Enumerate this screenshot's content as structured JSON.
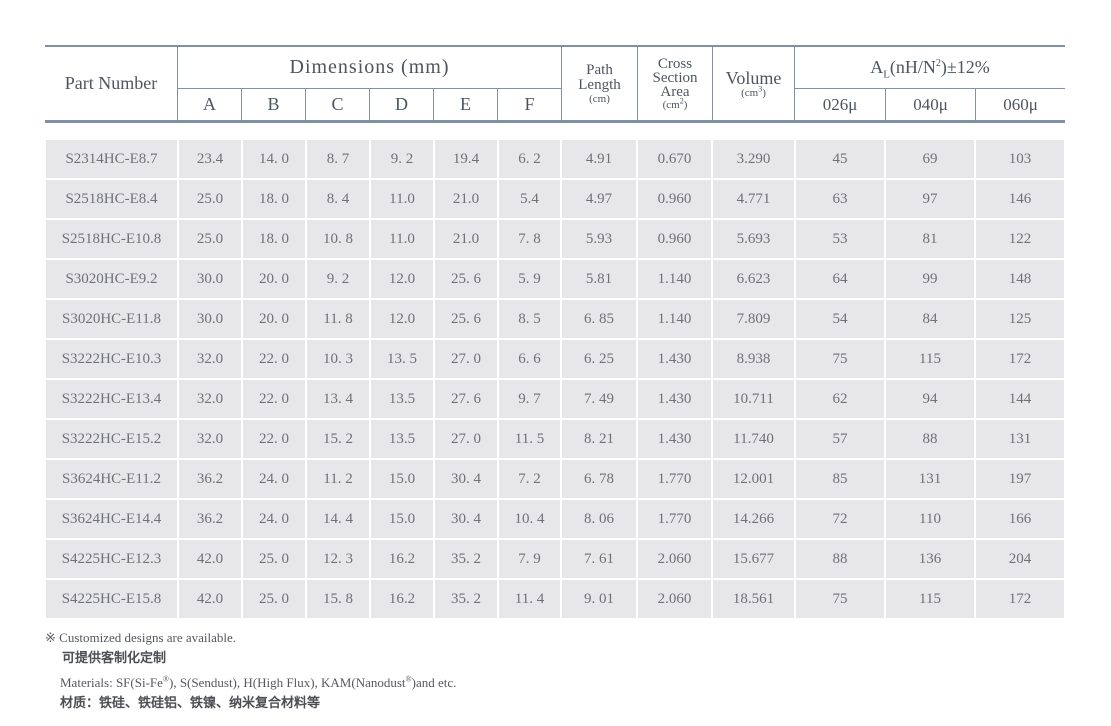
{
  "table": {
    "header": {
      "part_number": "Part Number",
      "dimensions": "Dimensions (mm)",
      "dim_cols": [
        "A",
        "B",
        "C",
        "D",
        "E",
        "F"
      ],
      "path_length": {
        "line1": "Path",
        "line2": "Length",
        "unit": "(cm)"
      },
      "cross_section": {
        "line1": "Cross",
        "line2": "Section",
        "line3": "Area",
        "unit_base": "(cm",
        "unit_sup": "2",
        "unit_tail": ")"
      },
      "volume": {
        "label": "Volume",
        "unit_base": "(cm",
        "unit_sup": "3",
        "unit_tail": ")"
      },
      "al": {
        "base": "A",
        "sub": "L",
        "mid": "(nH/N",
        "sup": "2",
        "tail": ")±12%"
      },
      "mu_cols": [
        "026μ",
        "040μ",
        "060μ"
      ]
    },
    "rows": [
      [
        "S2314HC-E8.7",
        "23.4",
        "14. 0",
        "8. 7",
        "9. 2",
        "19.4",
        "6. 2",
        "4.91",
        "0.670",
        "3.290",
        "45",
        "69",
        "103"
      ],
      [
        "S2518HC-E8.4",
        "25.0",
        "18. 0",
        "8. 4",
        "11.0",
        "21.0",
        "5.4",
        "4.97",
        "0.960",
        "4.771",
        "63",
        "97",
        "146"
      ],
      [
        "S2518HC-E10.8",
        "25.0",
        "18. 0",
        "10. 8",
        "11.0",
        "21.0",
        "7. 8",
        "5.93",
        "0.960",
        "5.693",
        "53",
        "81",
        "122"
      ],
      [
        "S3020HC-E9.2",
        "30.0",
        "20. 0",
        "9. 2",
        "12.0",
        "25. 6",
        "5. 9",
        "5.81",
        "1.140",
        "6.623",
        "64",
        "99",
        "148"
      ],
      [
        "S3020HC-E11.8",
        "30.0",
        "20. 0",
        "11. 8",
        "12.0",
        "25. 6",
        "8. 5",
        "6. 85",
        "1.140",
        "7.809",
        "54",
        "84",
        "125"
      ],
      [
        "S3222HC-E10.3",
        "32.0",
        "22. 0",
        "10. 3",
        "13. 5",
        "27. 0",
        "6. 6",
        "6. 25",
        "1.430",
        "8.938",
        "75",
        "115",
        "172"
      ],
      [
        "S3222HC-E13.4",
        "32.0",
        "22. 0",
        "13. 4",
        "13.5",
        "27. 6",
        "9. 7",
        "7. 49",
        "1.430",
        "10.711",
        "62",
        "94",
        "144"
      ],
      [
        "S3222HC-E15.2",
        "32.0",
        "22. 0",
        "15. 2",
        "13.5",
        "27. 0",
        "11. 5",
        "8. 21",
        "1.430",
        "11.740",
        "57",
        "88",
        "131"
      ],
      [
        "S3624HC-E11.2",
        "36.2",
        "24. 0",
        "11. 2",
        "15.0",
        "30. 4",
        "7. 2",
        "6. 78",
        "1.770",
        "12.001",
        "85",
        "131",
        "197"
      ],
      [
        "S3624HC-E14.4",
        "36.2",
        "24. 0",
        "14. 4",
        "15.0",
        "30. 4",
        "10. 4",
        "8. 06",
        "1.770",
        "14.266",
        "72",
        "110",
        "166"
      ],
      [
        "S4225HC-E12.3",
        "42.0",
        "25. 0",
        "12. 3",
        "16.2",
        "35. 2",
        "7. 9",
        "7. 61",
        "2.060",
        "15.677",
        "88",
        "136",
        "204"
      ],
      [
        "S4225HC-E15.8",
        "42.0",
        "25. 0",
        "15. 8",
        "16.2",
        "35. 2",
        "11. 4",
        "9. 01",
        "2.060",
        "18.561",
        "75",
        "115",
        "172"
      ]
    ]
  },
  "notes": {
    "symbol": "※ ",
    "custom_en": "Customized designs are available.",
    "custom_cn": "可提供客制化定制",
    "materials_p1": "Materials: SF(Si-Fe",
    "materials_s1": "®",
    "materials_p2": "), S(Sendust), H(High Flux), KAM(Nanodust",
    "materials_s2": "®",
    "materials_p3": ")and etc.",
    "materials_cn": "材质：铁硅、铁硅铝、铁镍、纳米复合材料等"
  },
  "colors": {
    "table_line": "#8090a6",
    "cell_background": "#e7e7e9",
    "header_text": "#4e5560",
    "data_text": "#6e7176"
  }
}
